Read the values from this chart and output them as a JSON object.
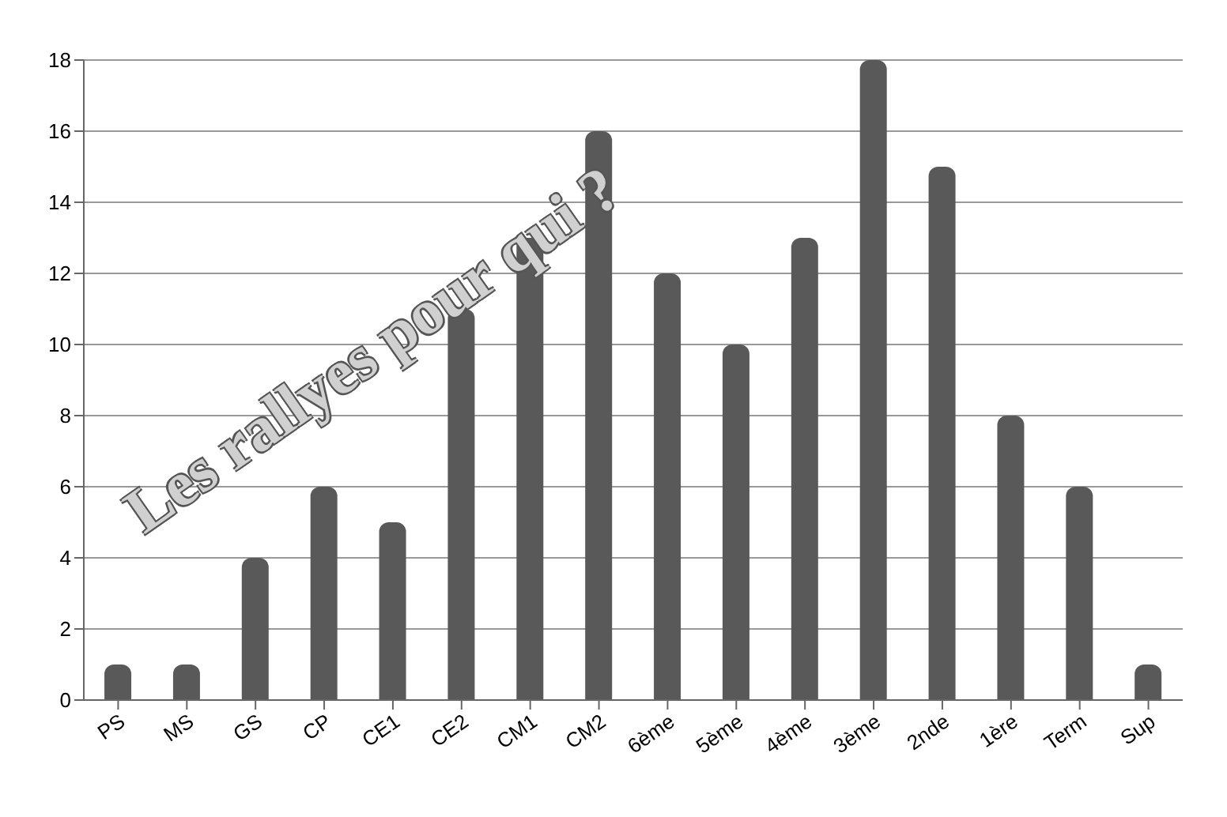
{
  "chart_data": {
    "type": "bar",
    "title": "Les rallyes pour qui ?",
    "categories": [
      "PS",
      "MS",
      "GS",
      "CP",
      "CE1",
      "CE2",
      "CM1",
      "CM2",
      "6ème",
      "5ème",
      "4ème",
      "3ème",
      "2nde",
      "1ère",
      "Term",
      "Sup"
    ],
    "values": [
      1,
      1,
      4,
      6,
      5,
      11,
      13,
      16,
      12,
      10,
      13,
      18,
      15,
      8,
      6,
      1
    ],
    "color": "#595959",
    "ylim": [
      0,
      18
    ],
    "yticks": [
      0,
      2,
      4,
      6,
      8,
      10,
      12,
      14,
      16,
      18
    ],
    "grid": "y"
  }
}
